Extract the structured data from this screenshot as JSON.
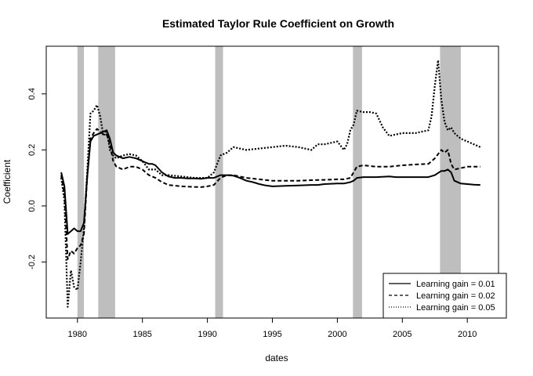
{
  "chart_data": {
    "type": "line",
    "title": "Estimated Taylor Rule Coefficient on Growth",
    "xlabel": "dates",
    "ylabel": "Coefficient",
    "xlim": [
      1977.6,
      2012.4
    ],
    "ylim": [
      -0.4,
      0.57
    ],
    "x_ticks": [
      1980,
      1985,
      1990,
      1995,
      2000,
      2005,
      2010
    ],
    "y_ticks": [
      -0.2,
      0.0,
      0.2,
      0.4
    ],
    "x_tick_labels": [
      "1980",
      "1985",
      "1990",
      "1995",
      "2000",
      "2005",
      "2010"
    ],
    "y_tick_labels": [
      "-0.2",
      "0.0",
      "0.2",
      "0.4"
    ],
    "grid": false,
    "legend_position": "bottom-right",
    "recessions": [
      [
        1980.0,
        1980.5
      ],
      [
        1981.6,
        1982.9
      ],
      [
        1990.6,
        1991.2
      ],
      [
        2001.2,
        2001.9
      ],
      [
        2007.9,
        2009.5
      ]
    ],
    "recession_color": "#bebebe",
    "series": [
      {
        "name": "Learning gain = 0.01",
        "style": "solid",
        "x": [
          1978.75,
          1979.0,
          1979.25,
          1979.5,
          1979.75,
          1980.0,
          1980.25,
          1980.5,
          1980.75,
          1981.0,
          1981.25,
          1981.5,
          1981.75,
          1982.0,
          1982.25,
          1982.5,
          1982.75,
          1983.0,
          1983.5,
          1984.0,
          1984.5,
          1985.0,
          1985.25,
          1985.5,
          1985.75,
          1986.0,
          1986.5,
          1987.0,
          1987.5,
          1988.0,
          1988.5,
          1989.0,
          1989.5,
          1990.0,
          1990.5,
          1991.0,
          1991.5,
          1992.0,
          1992.5,
          1993.0,
          1993.5,
          1994.0,
          1994.5,
          1995.0,
          1996.0,
          1997.0,
          1998.0,
          1998.5,
          1999.0,
          2000.0,
          2000.5,
          2001.0,
          2001.25,
          2001.5,
          2002.0,
          2003.0,
          2004.0,
          2004.5,
          2005.0,
          2006.0,
          2007.0,
          2007.5,
          2008.0,
          2008.25,
          2008.5,
          2008.75,
          2009.0,
          2009.5,
          2010.0,
          2010.5,
          2011.0
        ],
        "y": [
          0.12,
          0.07,
          -0.1,
          -0.09,
          -0.08,
          -0.09,
          -0.09,
          -0.06,
          0.1,
          0.23,
          0.25,
          0.255,
          0.26,
          0.265,
          0.27,
          0.24,
          0.19,
          0.18,
          0.17,
          0.175,
          0.17,
          0.16,
          0.155,
          0.15,
          0.15,
          0.145,
          0.12,
          0.105,
          0.1,
          0.1,
          0.098,
          0.098,
          0.097,
          0.1,
          0.1,
          0.11,
          0.11,
          0.108,
          0.1,
          0.09,
          0.085,
          0.078,
          0.073,
          0.07,
          0.072,
          0.073,
          0.075,
          0.075,
          0.078,
          0.08,
          0.08,
          0.085,
          0.09,
          0.1,
          0.103,
          0.103,
          0.105,
          0.103,
          0.103,
          0.103,
          0.103,
          0.11,
          0.125,
          0.125,
          0.13,
          0.12,
          0.09,
          0.08,
          0.078,
          0.076,
          0.075
        ]
      },
      {
        "name": "Learning gain = 0.02",
        "style": "dashed",
        "x": [
          1978.75,
          1979.0,
          1979.25,
          1979.5,
          1979.75,
          1980.0,
          1980.25,
          1980.5,
          1980.75,
          1981.0,
          1981.25,
          1981.5,
          1981.75,
          1982.0,
          1982.25,
          1982.5,
          1982.75,
          1983.0,
          1983.5,
          1984.0,
          1984.5,
          1985.0,
          1985.5,
          1986.0,
          1986.5,
          1987.0,
          1988.0,
          1989.0,
          1989.5,
          1990.0,
          1990.5,
          1991.0,
          1991.5,
          1992.0,
          1992.5,
          1993.0,
          1994.0,
          1995.0,
          1996.0,
          1997.0,
          1998.0,
          1999.0,
          2000.0,
          2000.5,
          2001.0,
          2001.5,
          2002.0,
          2003.0,
          2004.0,
          2005.0,
          2006.0,
          2007.0,
          2007.5,
          2008.0,
          2008.25,
          2008.5,
          2008.75,
          2009.0,
          2009.5,
          2010.0,
          2010.5,
          2011.0
        ],
        "y": [
          0.11,
          0.04,
          -0.19,
          -0.16,
          -0.17,
          -0.15,
          -0.14,
          -0.1,
          0.1,
          0.24,
          0.26,
          0.275,
          0.265,
          0.255,
          0.255,
          0.22,
          0.16,
          0.14,
          0.13,
          0.14,
          0.14,
          0.13,
          0.11,
          0.1,
          0.085,
          0.075,
          0.07,
          0.068,
          0.067,
          0.07,
          0.075,
          0.1,
          0.11,
          0.11,
          0.105,
          0.1,
          0.095,
          0.09,
          0.09,
          0.09,
          0.092,
          0.093,
          0.095,
          0.095,
          0.1,
          0.14,
          0.145,
          0.14,
          0.14,
          0.145,
          0.148,
          0.15,
          0.17,
          0.2,
          0.19,
          0.2,
          0.15,
          0.13,
          0.135,
          0.14,
          0.14,
          0.14
        ]
      },
      {
        "name": "Learning gain = 0.05",
        "style": "dotted",
        "x": [
          1978.75,
          1979.0,
          1979.25,
          1979.5,
          1979.75,
          1980.0,
          1980.25,
          1980.5,
          1980.75,
          1981.0,
          1981.25,
          1981.5,
          1981.75,
          1982.0,
          1982.25,
          1982.5,
          1982.75,
          1983.0,
          1983.5,
          1984.0,
          1984.5,
          1985.0,
          1985.5,
          1986.0,
          1986.5,
          1987.0,
          1988.0,
          1989.0,
          1989.5,
          1990.0,
          1990.5,
          1991.0,
          1991.5,
          1992.0,
          1993.0,
          1994.0,
          1995.0,
          1996.0,
          1997.0,
          1998.0,
          1998.5,
          1999.0,
          2000.0,
          2000.5,
          2000.75,
          2001.0,
          2001.25,
          2001.5,
          2002.0,
          2002.5,
          2003.0,
          2003.5,
          2004.0,
          2005.0,
          2006.0,
          2007.0,
          2007.25,
          2007.5,
          2007.75,
          2008.0,
          2008.25,
          2008.5,
          2008.75,
          2009.0,
          2009.5,
          2010.0,
          2010.5,
          2011.0
        ],
        "y": [
          0.1,
          0.02,
          -0.36,
          -0.23,
          -0.29,
          -0.3,
          -0.2,
          -0.08,
          0.12,
          0.33,
          0.34,
          0.36,
          0.32,
          0.25,
          0.27,
          0.2,
          0.18,
          0.17,
          0.18,
          0.185,
          0.18,
          0.16,
          0.13,
          0.13,
          0.11,
          0.11,
          0.105,
          0.1,
          0.1,
          0.1,
          0.12,
          0.18,
          0.19,
          0.21,
          0.2,
          0.205,
          0.21,
          0.215,
          0.21,
          0.2,
          0.22,
          0.22,
          0.23,
          0.2,
          0.22,
          0.27,
          0.29,
          0.34,
          0.335,
          0.335,
          0.33,
          0.28,
          0.25,
          0.26,
          0.26,
          0.27,
          0.32,
          0.43,
          0.52,
          0.38,
          0.3,
          0.27,
          0.28,
          0.26,
          0.24,
          0.23,
          0.22,
          0.21
        ]
      }
    ]
  }
}
